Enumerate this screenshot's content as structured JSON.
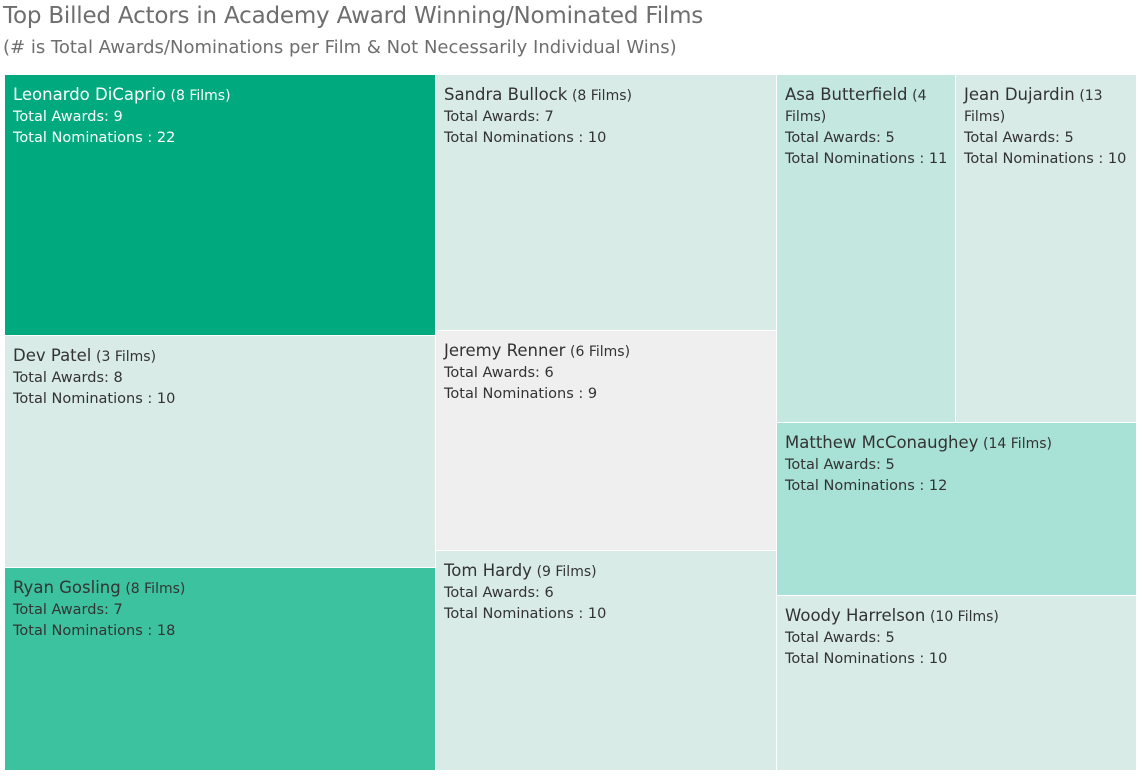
{
  "title": "Top Billed Actors in Academy Award Winning/Nominated Films",
  "subtitle": "(# is Total Awards/Nominations per Film & Not Necessarily Individual Wins)",
  "labels": {
    "awards_prefix": "Total Awards: ",
    "nominations_prefix": "Total Nominations : "
  },
  "colors": {
    "darkest": "#00a97e",
    "dark": "#3cc29e",
    "mid": "#a8e1d5",
    "light": "#c4e7df",
    "pale": "#d8ebe6",
    "gray": "#efefef",
    "border": "#ffffff"
  },
  "chart_data": {
    "type": "treemap",
    "size_measure": "Total Nominations",
    "color_measure": "Total Awards",
    "items": [
      {
        "name": "Leonardo DiCaprio",
        "films": "(8 Films)",
        "awards": 9,
        "nominations": 22,
        "color": "#00a97e"
      },
      {
        "name": "Sandra Bullock",
        "films": "(8 Films)",
        "awards": 7,
        "nominations": 10,
        "color": "#d8ebe6"
      },
      {
        "name": "Asa Butterfield",
        "films": "(4 Films)",
        "awards": 5,
        "nominations": 11,
        "color": "#c4e7df"
      },
      {
        "name": "Jean Dujardin",
        "films": "(13 Films)",
        "awards": 5,
        "nominations": 10,
        "color": "#d8ebe6"
      },
      {
        "name": "Dev Patel",
        "films": "(3 Films)",
        "awards": 8,
        "nominations": 10,
        "color": "#d8ebe6"
      },
      {
        "name": "Jeremy Renner",
        "films": "(6 Films)",
        "awards": 6,
        "nominations": 9,
        "color": "#efefef"
      },
      {
        "name": "Matthew McConaughey",
        "films": "(14 Films)",
        "awards": 5,
        "nominations": 12,
        "color": "#a8e1d5"
      },
      {
        "name": "Ryan Gosling",
        "films": "(8 Films)",
        "awards": 7,
        "nominations": 18,
        "color": "#3cc29e"
      },
      {
        "name": "Tom Hardy",
        "films": "(9 Films)",
        "awards": 6,
        "nominations": 10,
        "color": "#d8ebe6"
      },
      {
        "name": "Woody Harrelson",
        "films": "(10 Films)",
        "awards": 5,
        "nominations": 10,
        "color": "#d8ebe6"
      }
    ]
  }
}
